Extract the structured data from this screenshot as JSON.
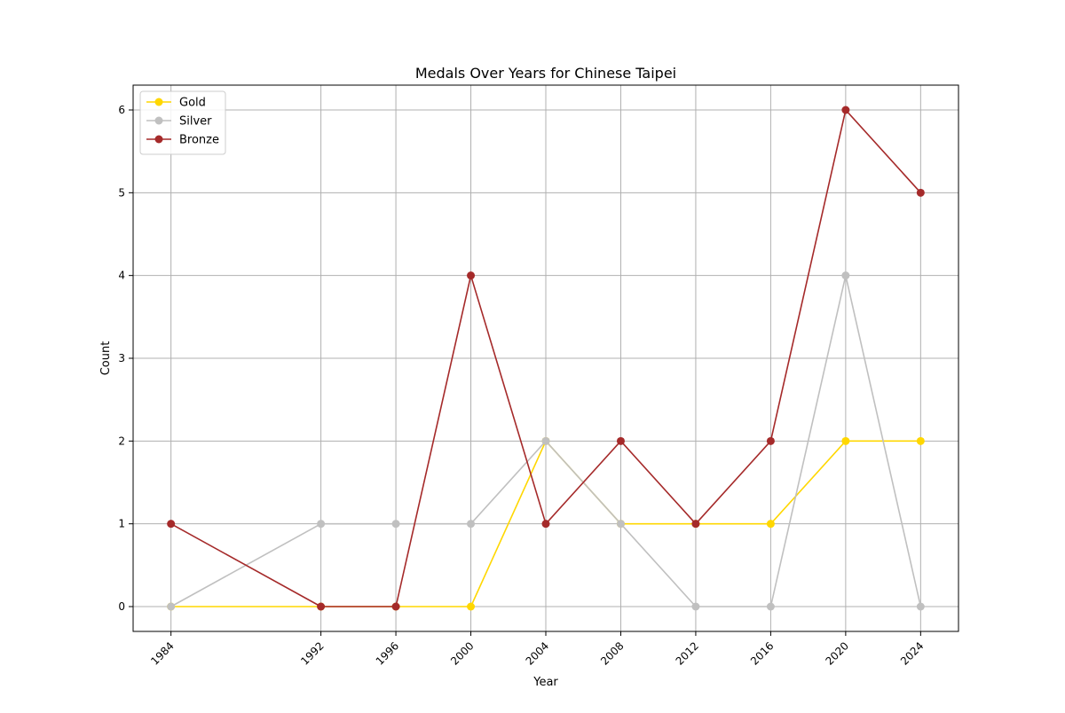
{
  "chart_data": {
    "type": "line",
    "title": "Medals Over Years for Chinese Taipei",
    "xlabel": "Year",
    "ylabel": "Count",
    "x": [
      1984,
      1992,
      1996,
      2000,
      2004,
      2008,
      2012,
      2016,
      2020,
      2024
    ],
    "xlim": [
      1981.98,
      2026.02
    ],
    "ylim": [
      -0.3,
      6.3
    ],
    "yticks": [
      0,
      1,
      2,
      3,
      4,
      5,
      6
    ],
    "grid": true,
    "legend_position": "top-left",
    "series": [
      {
        "name": "Gold",
        "color": "#FFD700",
        "values": [
          0,
          0,
          0,
          0,
          2,
          1,
          1,
          1,
          2,
          2
        ]
      },
      {
        "name": "Silver",
        "color": "#C0C0C0",
        "values": [
          0,
          1,
          1,
          1,
          2,
          1,
          0,
          0,
          4,
          0
        ]
      },
      {
        "name": "Bronze",
        "color": "#A52A2A",
        "values": [
          1,
          0,
          0,
          4,
          1,
          2,
          1,
          2,
          6,
          5
        ]
      }
    ]
  }
}
